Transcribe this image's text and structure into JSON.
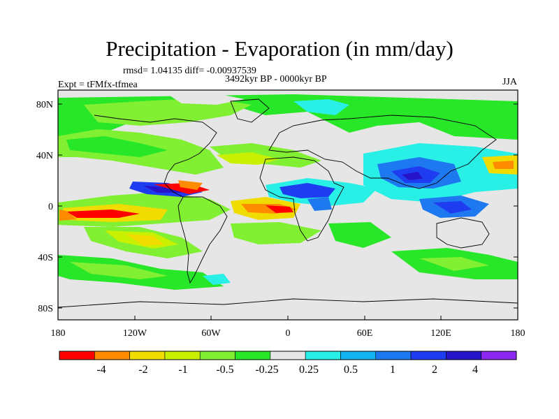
{
  "header": {
    "title": "Precipitation - Evaporation (in mm/day)",
    "stats": "rmsd= 1.04135 diff= -0.00937539",
    "period": "3492kyr BP - 0000kyr BP",
    "experiment": "Expt = tFMfx-tfmea",
    "season": "JJA"
  },
  "map": {
    "projection": "cylindrical-equidistant",
    "lat_labels": [
      "80N",
      "40N",
      "0",
      "40S",
      "80S"
    ],
    "lon_labels": [
      "180",
      "120W",
      "60W",
      "0",
      "60E",
      "120E",
      "180"
    ]
  },
  "colorbar": {
    "bins": [
      {
        "color": "#ff0000"
      },
      {
        "color": "#ff8c00"
      },
      {
        "color": "#f0dc00"
      },
      {
        "color": "#c8f000"
      },
      {
        "color": "#82f032"
      },
      {
        "color": "#28e628"
      },
      {
        "color": "#e6e6e6"
      },
      {
        "color": "#28f0e6"
      },
      {
        "color": "#14b4f0"
      },
      {
        "color": "#1e78f0"
      },
      {
        "color": "#1e3cf0"
      },
      {
        "color": "#2814c8"
      },
      {
        "color": "#8c28f0"
      }
    ],
    "labels": [
      "-4",
      "-2",
      "-1",
      "-0.5",
      "-0.25",
      "0.25",
      "0.5",
      "1",
      "2",
      "4"
    ]
  }
}
